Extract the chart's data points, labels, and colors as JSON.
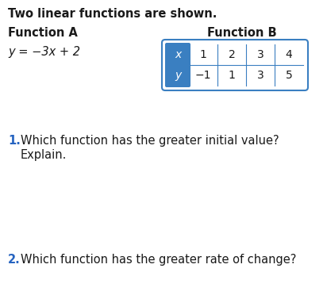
{
  "title": "Two linear functions are shown.",
  "func_a_label": "Function A",
  "func_b_label": "Function B",
  "equation": "y = −3x + 2",
  "table_x_label": "x",
  "table_y_label": "y",
  "table_x_values": [
    "1",
    "2",
    "3",
    "4"
  ],
  "table_y_values": [
    "−1",
    "1",
    "3",
    "5"
  ],
  "question1_num": "1.",
  "question1_text": "Which function has the greater initial value?",
  "question1_sub": "Explain.",
  "question2_num": "2.",
  "question2_text": "Which function has the greater rate of change?",
  "bg_color": "#ffffff",
  "title_color": "#1a1a1a",
  "question_num_color": "#2563c0",
  "question_text_color": "#1a1a1a",
  "func_label_color": "#1a1a1a",
  "equation_color": "#1a1a1a",
  "table_header_bg": "#3a7fc1",
  "table_header_text": "#ffffff",
  "table_border_color": "#3a7fc1",
  "table_cell_bg": "#ffffff",
  "table_cell_text": "#1a1a1a"
}
